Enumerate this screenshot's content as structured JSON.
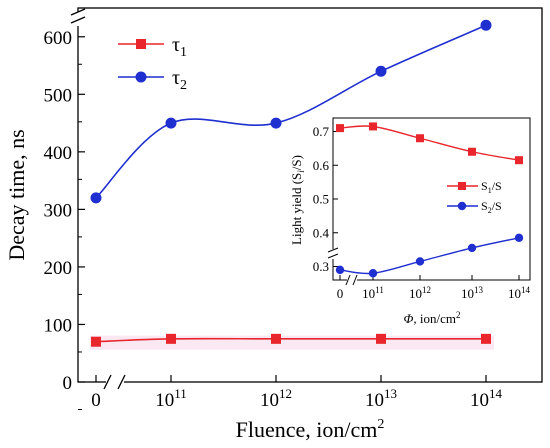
{
  "chart_data": [
    {
      "type": "line",
      "ylabel": "Decay time, ns",
      "xlabel_main": "Fluence, ion/cm",
      "xlabel_sup": "2",
      "x_ticks": [
        {
          "base": "0",
          "exp": ""
        },
        {
          "base": "10",
          "exp": "11"
        },
        {
          "base": "10",
          "exp": "12"
        },
        {
          "base": "10",
          "exp": "13"
        },
        {
          "base": "10",
          "exp": "14"
        }
      ],
      "ylim": [
        0,
        650
      ],
      "y_ticks": [
        0,
        100,
        200,
        300,
        400,
        500,
        600
      ],
      "axis_break": "x between 0 and 10^11; y near top",
      "legend_placement": "top-left",
      "series": [
        {
          "name": "τ",
          "name_sub": "1",
          "color": "#e8262b",
          "marker": "square",
          "x": [
            "0",
            "10^11",
            "10^12",
            "10^13",
            "10^14"
          ],
          "values": [
            70,
            75,
            75,
            75,
            75
          ]
        },
        {
          "name": "τ",
          "name_sub": "2",
          "color": "#1f2fd0",
          "marker": "circle",
          "x": [
            "0",
            "10^11",
            "10^12",
            "10^13",
            "10^14"
          ],
          "values": [
            320,
            450,
            450,
            540,
            620
          ]
        }
      ]
    },
    {
      "type": "line",
      "ylabel": "Light yield (S",
      "ylabel_sub": "i",
      "ylabel_end": "/S)",
      "xlabel_phi": "Φ",
      "xlabel_main": ", ion/cm",
      "xlabel_sup": "2",
      "x_ticks": [
        {
          "base": "0",
          "exp": ""
        },
        {
          "base": "10",
          "exp": "11"
        },
        {
          "base": "10",
          "exp": "12"
        },
        {
          "base": "10",
          "exp": "13"
        },
        {
          "base": "10",
          "exp": "14"
        }
      ],
      "ylim": [
        0.26,
        0.74
      ],
      "y_ticks": [
        "0.3",
        "0.4",
        "0.5",
        "0.6",
        "0.7"
      ],
      "legend_placement": "right",
      "series": [
        {
          "name": "S",
          "name_sub": "1",
          "name_end": "/S",
          "color": "#e8262b",
          "marker": "square",
          "x": [
            "0",
            "10^11",
            "10^12",
            "10^13",
            "10^14"
          ],
          "values": [
            0.71,
            0.715,
            0.68,
            0.64,
            0.615
          ]
        },
        {
          "name": "S",
          "name_sub": "2",
          "name_end": "/S",
          "color": "#1f2fd0",
          "marker": "circle",
          "x": [
            "0",
            "10^11",
            "10^12",
            "10^13",
            "10^14"
          ],
          "values": [
            0.29,
            0.28,
            0.315,
            0.355,
            0.385
          ]
        }
      ]
    }
  ]
}
